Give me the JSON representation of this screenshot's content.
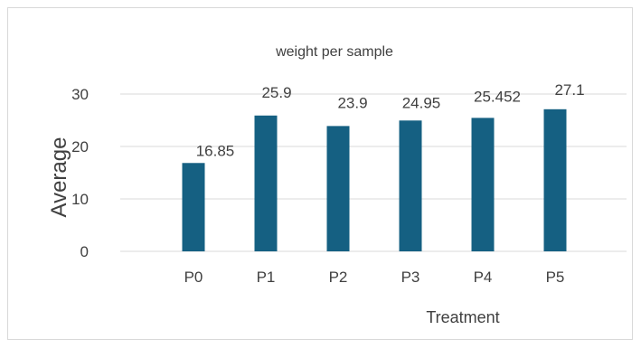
{
  "chart_data": {
    "type": "bar",
    "title": "weight per sample",
    "xlabel": "Treatment",
    "ylabel": "Average",
    "categories": [
      "P0",
      "P1",
      "P2",
      "P3",
      "P4",
      "P5"
    ],
    "values": [
      16.85,
      25.9,
      23.9,
      24.95,
      25.452,
      27.1
    ],
    "data_labels": [
      "16.85",
      "25.9",
      "23.9",
      "24.95",
      "25.452",
      "27.1"
    ],
    "yticks": [
      "0",
      "10",
      "20",
      "30"
    ],
    "ytick_values": [
      0,
      10,
      20,
      30
    ],
    "ylim": [
      0,
      30
    ],
    "grid": true,
    "legend": "none",
    "colors": {
      "bar": "#156082",
      "grid": "#d9d9d9"
    }
  }
}
